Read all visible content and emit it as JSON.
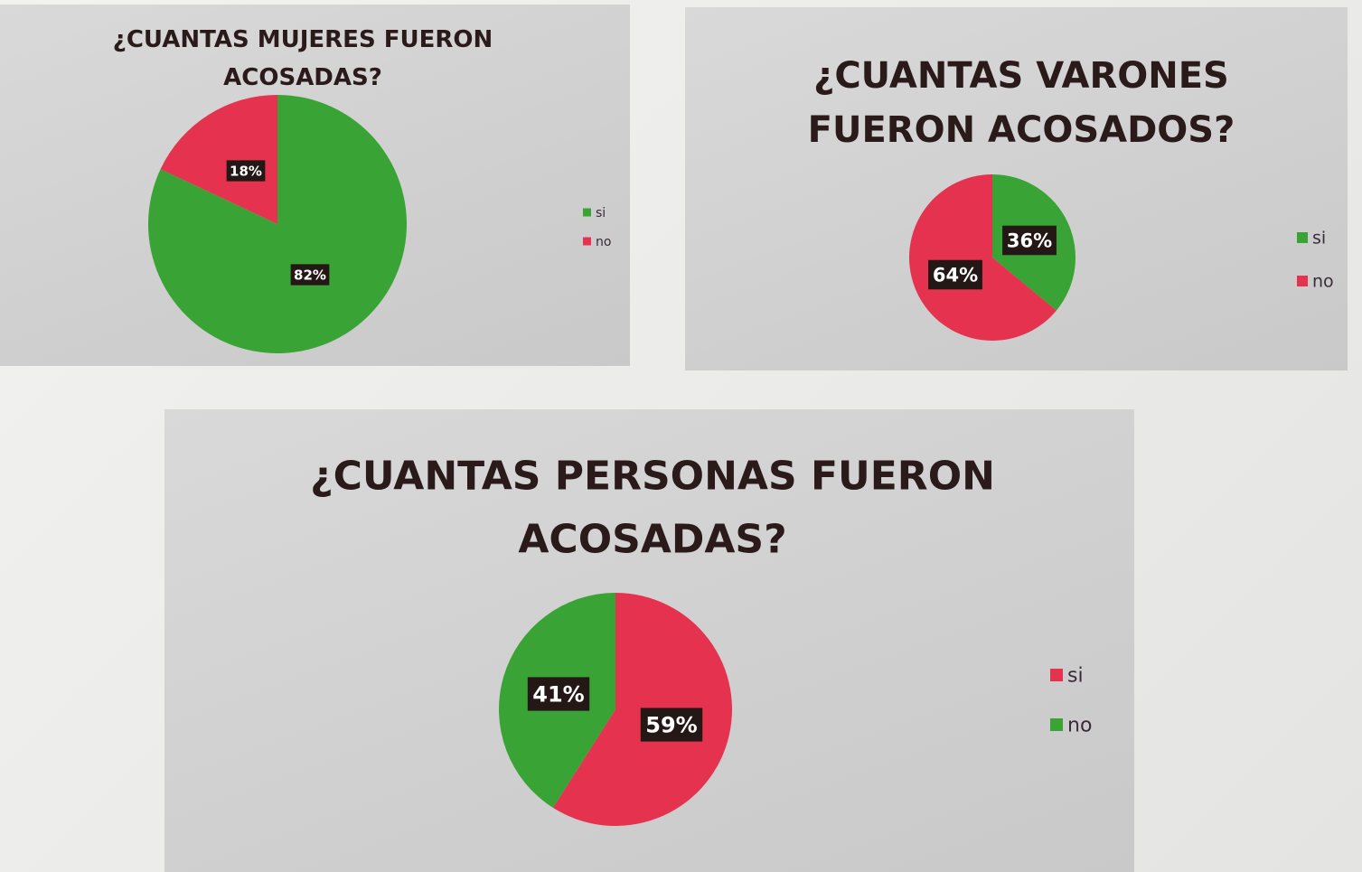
{
  "colors": {
    "green": "#3aa335",
    "red": "#e5324e"
  },
  "chart_data": [
    {
      "type": "pie",
      "title_lines": [
        "¿CUANTAS MUJERES FUERON",
        "ACOSADAS?"
      ],
      "categories": [
        "si",
        "no"
      ],
      "values": [
        82,
        18
      ],
      "data_labels": [
        "82%",
        "18%"
      ],
      "slice_colors": [
        "#3aa335",
        "#e5324e"
      ],
      "legend": {
        "position": "right",
        "entries": [
          "si",
          "no"
        ]
      }
    },
    {
      "type": "pie",
      "title_lines": [
        "¿CUANTAS VARONES",
        "FUERON ACOSADOS?"
      ],
      "categories": [
        "si",
        "no"
      ],
      "values": [
        36,
        64
      ],
      "data_labels": [
        "36%",
        "64%"
      ],
      "slice_colors": [
        "#3aa335",
        "#e5324e"
      ],
      "legend": {
        "position": "right",
        "entries": [
          "si",
          "no"
        ]
      }
    },
    {
      "type": "pie",
      "title_lines": [
        "¿CUANTAS PERSONAS FUERON",
        "ACOSADAS?"
      ],
      "categories": [
        "si",
        "no"
      ],
      "values": [
        59,
        41
      ],
      "data_labels": [
        "59%",
        "41%"
      ],
      "slice_colors": [
        "#e5324e",
        "#3aa335"
      ],
      "legend": {
        "position": "right",
        "entries": [
          "si",
          "no"
        ]
      }
    }
  ]
}
